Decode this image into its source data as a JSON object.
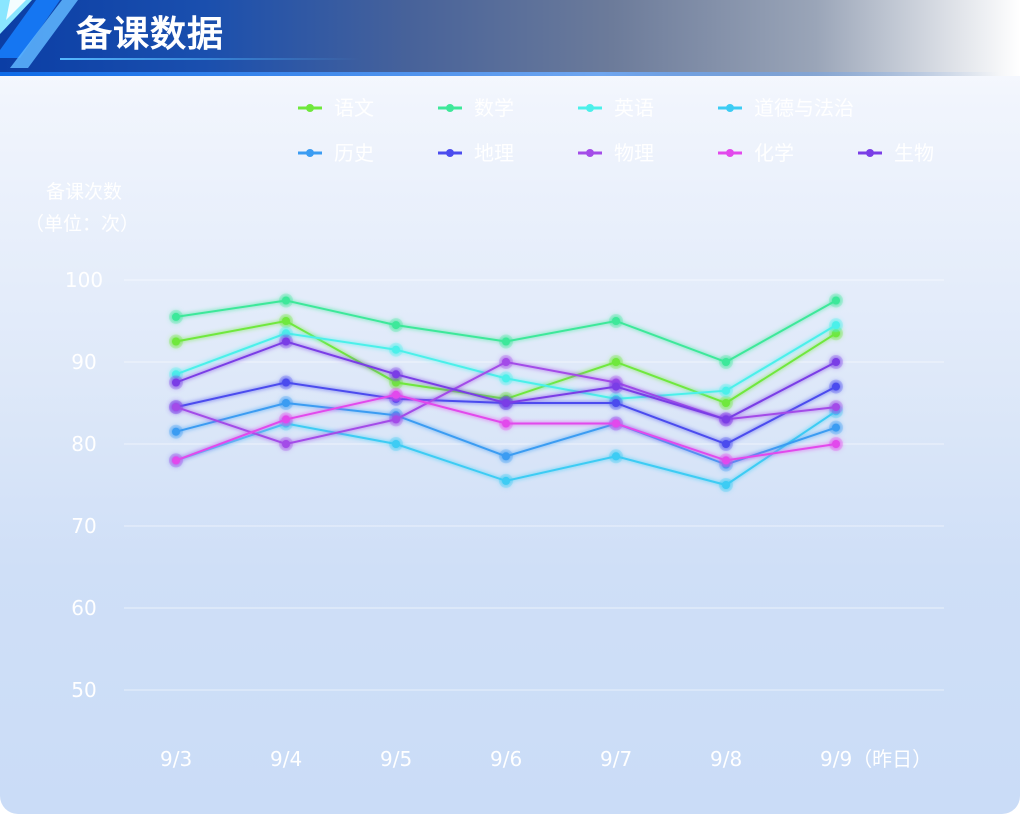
{
  "header": {
    "title": "备课数据"
  },
  "chart_data": {
    "type": "line",
    "ylabel": "备课次数",
    "yunit": "（单位：次）",
    "ylim": [
      50,
      100
    ],
    "yticks": [
      50,
      60,
      70,
      80,
      90,
      100
    ],
    "categories": [
      "9/3",
      "9/4",
      "9/5",
      "9/6",
      "9/7",
      "9/8",
      "9/9（昨日）"
    ],
    "legend_position": "top",
    "grid": true,
    "series": [
      {
        "name": "语文",
        "color": "#6fe83c",
        "values": [
          92.5,
          95,
          87.5,
          85.5,
          90,
          85,
          93.5
        ]
      },
      {
        "name": "数学",
        "color": "#3ee89a",
        "values": [
          95.5,
          97.5,
          94.5,
          92.5,
          95,
          90,
          97.5
        ]
      },
      {
        "name": "英语",
        "color": "#4bf0ea",
        "values": [
          88.5,
          93.5,
          91.5,
          88,
          85.5,
          86.5,
          94.5
        ]
      },
      {
        "name": "道德与法治",
        "color": "#3cccf4",
        "values": [
          78,
          82.5,
          80,
          75.5,
          78.5,
          75,
          84
        ]
      },
      {
        "name": "历史",
        "color": "#3b9cf2",
        "values": [
          81.5,
          85,
          83.5,
          78.5,
          82.5,
          77.5,
          82
        ]
      },
      {
        "name": "地理",
        "color": "#4b4cee",
        "values": [
          84.5,
          87.5,
          85.5,
          85,
          85,
          80,
          87
        ]
      },
      {
        "name": "物理",
        "color": "#a34ce8",
        "values": [
          84.5,
          80,
          83,
          90,
          87.5,
          83,
          84.5
        ]
      },
      {
        "name": "化学",
        "color": "#e249ec",
        "values": [
          78,
          83,
          86,
          82.5,
          82.5,
          78,
          80
        ]
      },
      {
        "name": "生物",
        "color": "#7a3ee6",
        "values": [
          87.5,
          92.5,
          88.5,
          85,
          87,
          83,
          90
        ]
      }
    ]
  }
}
